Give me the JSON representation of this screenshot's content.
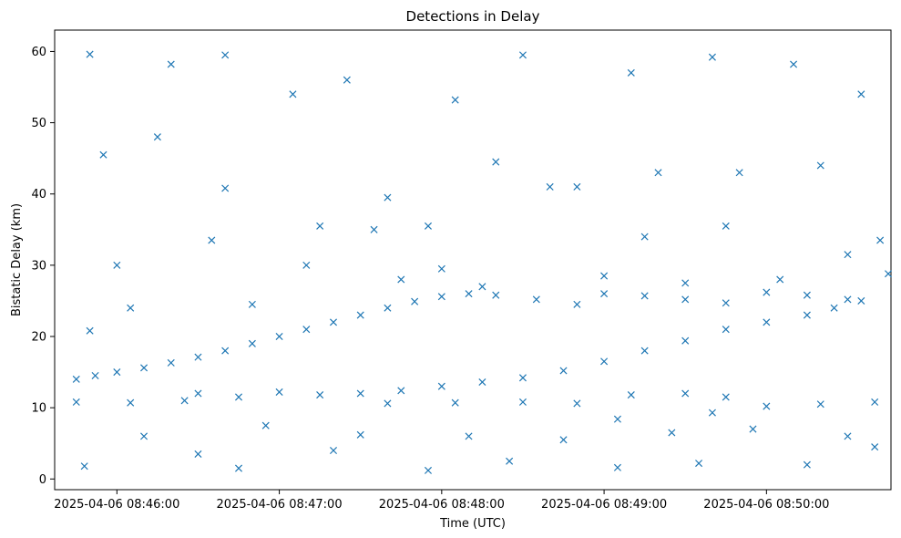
{
  "chart_data": {
    "type": "scatter",
    "title": "Detections in Delay",
    "xlabel": "Time (UTC)",
    "ylabel": "Bistatic Delay (km)",
    "marker": "x",
    "marker_color": "#1f77b4",
    "grid": false,
    "legend": "none",
    "x_unit": "time",
    "xlim": [
      "2025-04-06 08:45:37",
      "2025-04-06 08:50:46"
    ],
    "ylim": [
      -1.5,
      63
    ],
    "xticks": [
      {
        "label": "2025-04-06 08:46:00",
        "value": "2025-04-06 08:46:00"
      },
      {
        "label": "2025-04-06 08:47:00",
        "value": "2025-04-06 08:47:00"
      },
      {
        "label": "2025-04-06 08:48:00",
        "value": "2025-04-06 08:48:00"
      },
      {
        "label": "2025-04-06 08:49:00",
        "value": "2025-04-06 08:49:00"
      },
      {
        "label": "2025-04-06 08:50:00",
        "value": "2025-04-06 08:50:00"
      }
    ],
    "yticks": [
      0,
      10,
      20,
      30,
      40,
      50,
      60
    ],
    "series": [
      {
        "name": "",
        "points": [
          [
            "2025-04-06 08:45:45",
            14.0
          ],
          [
            "2025-04-06 08:45:52",
            14.5
          ],
          [
            "2025-04-06 08:46:00",
            15.0
          ],
          [
            "2025-04-06 08:46:10",
            15.6
          ],
          [
            "2025-04-06 08:46:20",
            16.3
          ],
          [
            "2025-04-06 08:46:30",
            17.1
          ],
          [
            "2025-04-06 08:46:40",
            18.0
          ],
          [
            "2025-04-06 08:46:50",
            19.0
          ],
          [
            "2025-04-06 08:47:00",
            20.0
          ],
          [
            "2025-04-06 08:47:10",
            21.0
          ],
          [
            "2025-04-06 08:47:20",
            22.0
          ],
          [
            "2025-04-06 08:47:30",
            23.0
          ],
          [
            "2025-04-06 08:47:40",
            24.0
          ],
          [
            "2025-04-06 08:47:50",
            24.9
          ],
          [
            "2025-04-06 08:48:00",
            25.6
          ],
          [
            "2025-04-06 08:48:10",
            26.0
          ],
          [
            "2025-04-06 08:48:20",
            25.8
          ],
          [
            "2025-04-06 08:47:15",
            11.8
          ],
          [
            "2025-04-06 08:47:30",
            12.0
          ],
          [
            "2025-04-06 08:47:45",
            12.4
          ],
          [
            "2025-04-06 08:48:00",
            13.0
          ],
          [
            "2025-04-06 08:48:15",
            13.6
          ],
          [
            "2025-04-06 08:48:30",
            14.2
          ],
          [
            "2025-04-06 08:48:45",
            15.2
          ],
          [
            "2025-04-06 08:49:00",
            16.5
          ],
          [
            "2025-04-06 08:49:15",
            18.0
          ],
          [
            "2025-04-06 08:49:30",
            19.4
          ],
          [
            "2025-04-06 08:49:45",
            21.0
          ],
          [
            "2025-04-06 08:50:00",
            22.0
          ],
          [
            "2025-04-06 08:50:15",
            23.0
          ],
          [
            "2025-04-06 08:50:25",
            24.0
          ],
          [
            "2025-04-06 08:50:35",
            25.0
          ],
          [
            "2025-04-06 08:48:35",
            25.2
          ],
          [
            "2025-04-06 08:48:50",
            24.5
          ],
          [
            "2025-04-06 08:49:00",
            26.0
          ],
          [
            "2025-04-06 08:49:15",
            25.7
          ],
          [
            "2025-04-06 08:49:30",
            25.2
          ],
          [
            "2025-04-06 08:49:45",
            24.7
          ],
          [
            "2025-04-06 08:50:00",
            26.2
          ],
          [
            "2025-04-06 08:50:15",
            25.8
          ],
          [
            "2025-04-06 08:50:30",
            25.2
          ],
          [
            "2025-04-06 08:45:50",
            20.8
          ],
          [
            "2025-04-06 08:46:30",
            12.0
          ],
          [
            "2025-04-06 08:46:45",
            11.5
          ],
          [
            "2025-04-06 08:47:00",
            12.2
          ],
          [
            "2025-04-06 08:49:10",
            11.8
          ],
          [
            "2025-04-06 08:49:30",
            12.0
          ],
          [
            "2025-04-06 08:49:45",
            11.5
          ],
          [
            "2025-04-06 08:50:00",
            10.2
          ],
          [
            "2025-04-06 08:50:20",
            10.5
          ],
          [
            "2025-04-06 08:50:40",
            10.8
          ],
          [
            "2025-04-06 08:45:45",
            10.8
          ],
          [
            "2025-04-06 08:46:05",
            10.7
          ],
          [
            "2025-04-06 08:46:25",
            11.0
          ],
          [
            "2025-04-06 08:47:40",
            10.6
          ],
          [
            "2025-04-06 08:48:05",
            10.7
          ],
          [
            "2025-04-06 08:48:30",
            10.8
          ],
          [
            "2025-04-06 08:48:50",
            10.6
          ],
          [
            "2025-04-06 08:49:05",
            8.4
          ],
          [
            "2025-04-06 08:49:40",
            9.3
          ],
          [
            "2025-04-06 08:45:50",
            59.6
          ],
          [
            "2025-04-06 08:46:20",
            58.2
          ],
          [
            "2025-04-06 08:46:40",
            59.5
          ],
          [
            "2025-04-06 08:47:05",
            54.0
          ],
          [
            "2025-04-06 08:47:25",
            56.0
          ],
          [
            "2025-04-06 08:48:05",
            53.2
          ],
          [
            "2025-04-06 08:48:30",
            59.5
          ],
          [
            "2025-04-06 08:49:10",
            57.0
          ],
          [
            "2025-04-06 08:49:40",
            59.2
          ],
          [
            "2025-04-06 08:50:10",
            58.2
          ],
          [
            "2025-04-06 08:50:35",
            54.0
          ],
          [
            "2025-04-06 08:45:55",
            45.5
          ],
          [
            "2025-04-06 08:46:15",
            48.0
          ],
          [
            "2025-04-06 08:46:40",
            40.8
          ],
          [
            "2025-04-06 08:47:15",
            35.5
          ],
          [
            "2025-04-06 08:47:40",
            39.5
          ],
          [
            "2025-04-06 08:47:55",
            35.5
          ],
          [
            "2025-04-06 08:48:20",
            44.5
          ],
          [
            "2025-04-06 08:48:50",
            41.0
          ],
          [
            "2025-04-06 08:49:20",
            43.0
          ],
          [
            "2025-04-06 08:49:50",
            43.0
          ],
          [
            "2025-04-06 08:50:20",
            44.0
          ],
          [
            "2025-04-06 08:45:48",
            1.8
          ],
          [
            "2025-04-06 08:46:30",
            3.5
          ],
          [
            "2025-04-06 08:46:45",
            1.5
          ],
          [
            "2025-04-06 08:47:20",
            4.0
          ],
          [
            "2025-04-06 08:47:55",
            1.2
          ],
          [
            "2025-04-06 08:48:25",
            2.5
          ],
          [
            "2025-04-06 08:49:05",
            1.6
          ],
          [
            "2025-04-06 08:49:35",
            2.2
          ],
          [
            "2025-04-06 08:50:15",
            2.0
          ],
          [
            "2025-04-06 08:50:40",
            4.5
          ],
          [
            "2025-04-06 08:46:00",
            30.0
          ],
          [
            "2025-04-06 08:46:35",
            33.5
          ],
          [
            "2025-04-06 08:47:10",
            30.0
          ],
          [
            "2025-04-06 08:47:35",
            35.0
          ],
          [
            "2025-04-06 08:48:00",
            29.5
          ],
          [
            "2025-04-06 08:48:40",
            41.0
          ],
          [
            "2025-04-06 08:49:15",
            34.0
          ],
          [
            "2025-04-06 08:49:45",
            35.5
          ],
          [
            "2025-04-06 08:50:30",
            31.5
          ],
          [
            "2025-04-06 08:50:42",
            33.5
          ],
          [
            "2025-04-06 08:46:10",
            6.0
          ],
          [
            "2025-04-06 08:46:55",
            7.5
          ],
          [
            "2025-04-06 08:47:30",
            6.2
          ],
          [
            "2025-04-06 08:48:10",
            6.0
          ],
          [
            "2025-04-06 08:48:45",
            5.5
          ],
          [
            "2025-04-06 08:49:25",
            6.5
          ],
          [
            "2025-04-06 08:49:55",
            7.0
          ],
          [
            "2025-04-06 08:50:30",
            6.0
          ],
          [
            "2025-04-06 08:46:05",
            24.0
          ],
          [
            "2025-04-06 08:46:50",
            24.5
          ],
          [
            "2025-04-06 08:47:45",
            28.0
          ],
          [
            "2025-04-06 08:48:15",
            27.0
          ],
          [
            "2025-04-06 08:49:00",
            28.5
          ],
          [
            "2025-04-06 08:49:30",
            27.5
          ],
          [
            "2025-04-06 08:50:05",
            28.0
          ],
          [
            "2025-04-06 08:50:45",
            28.8
          ]
        ]
      }
    ]
  }
}
